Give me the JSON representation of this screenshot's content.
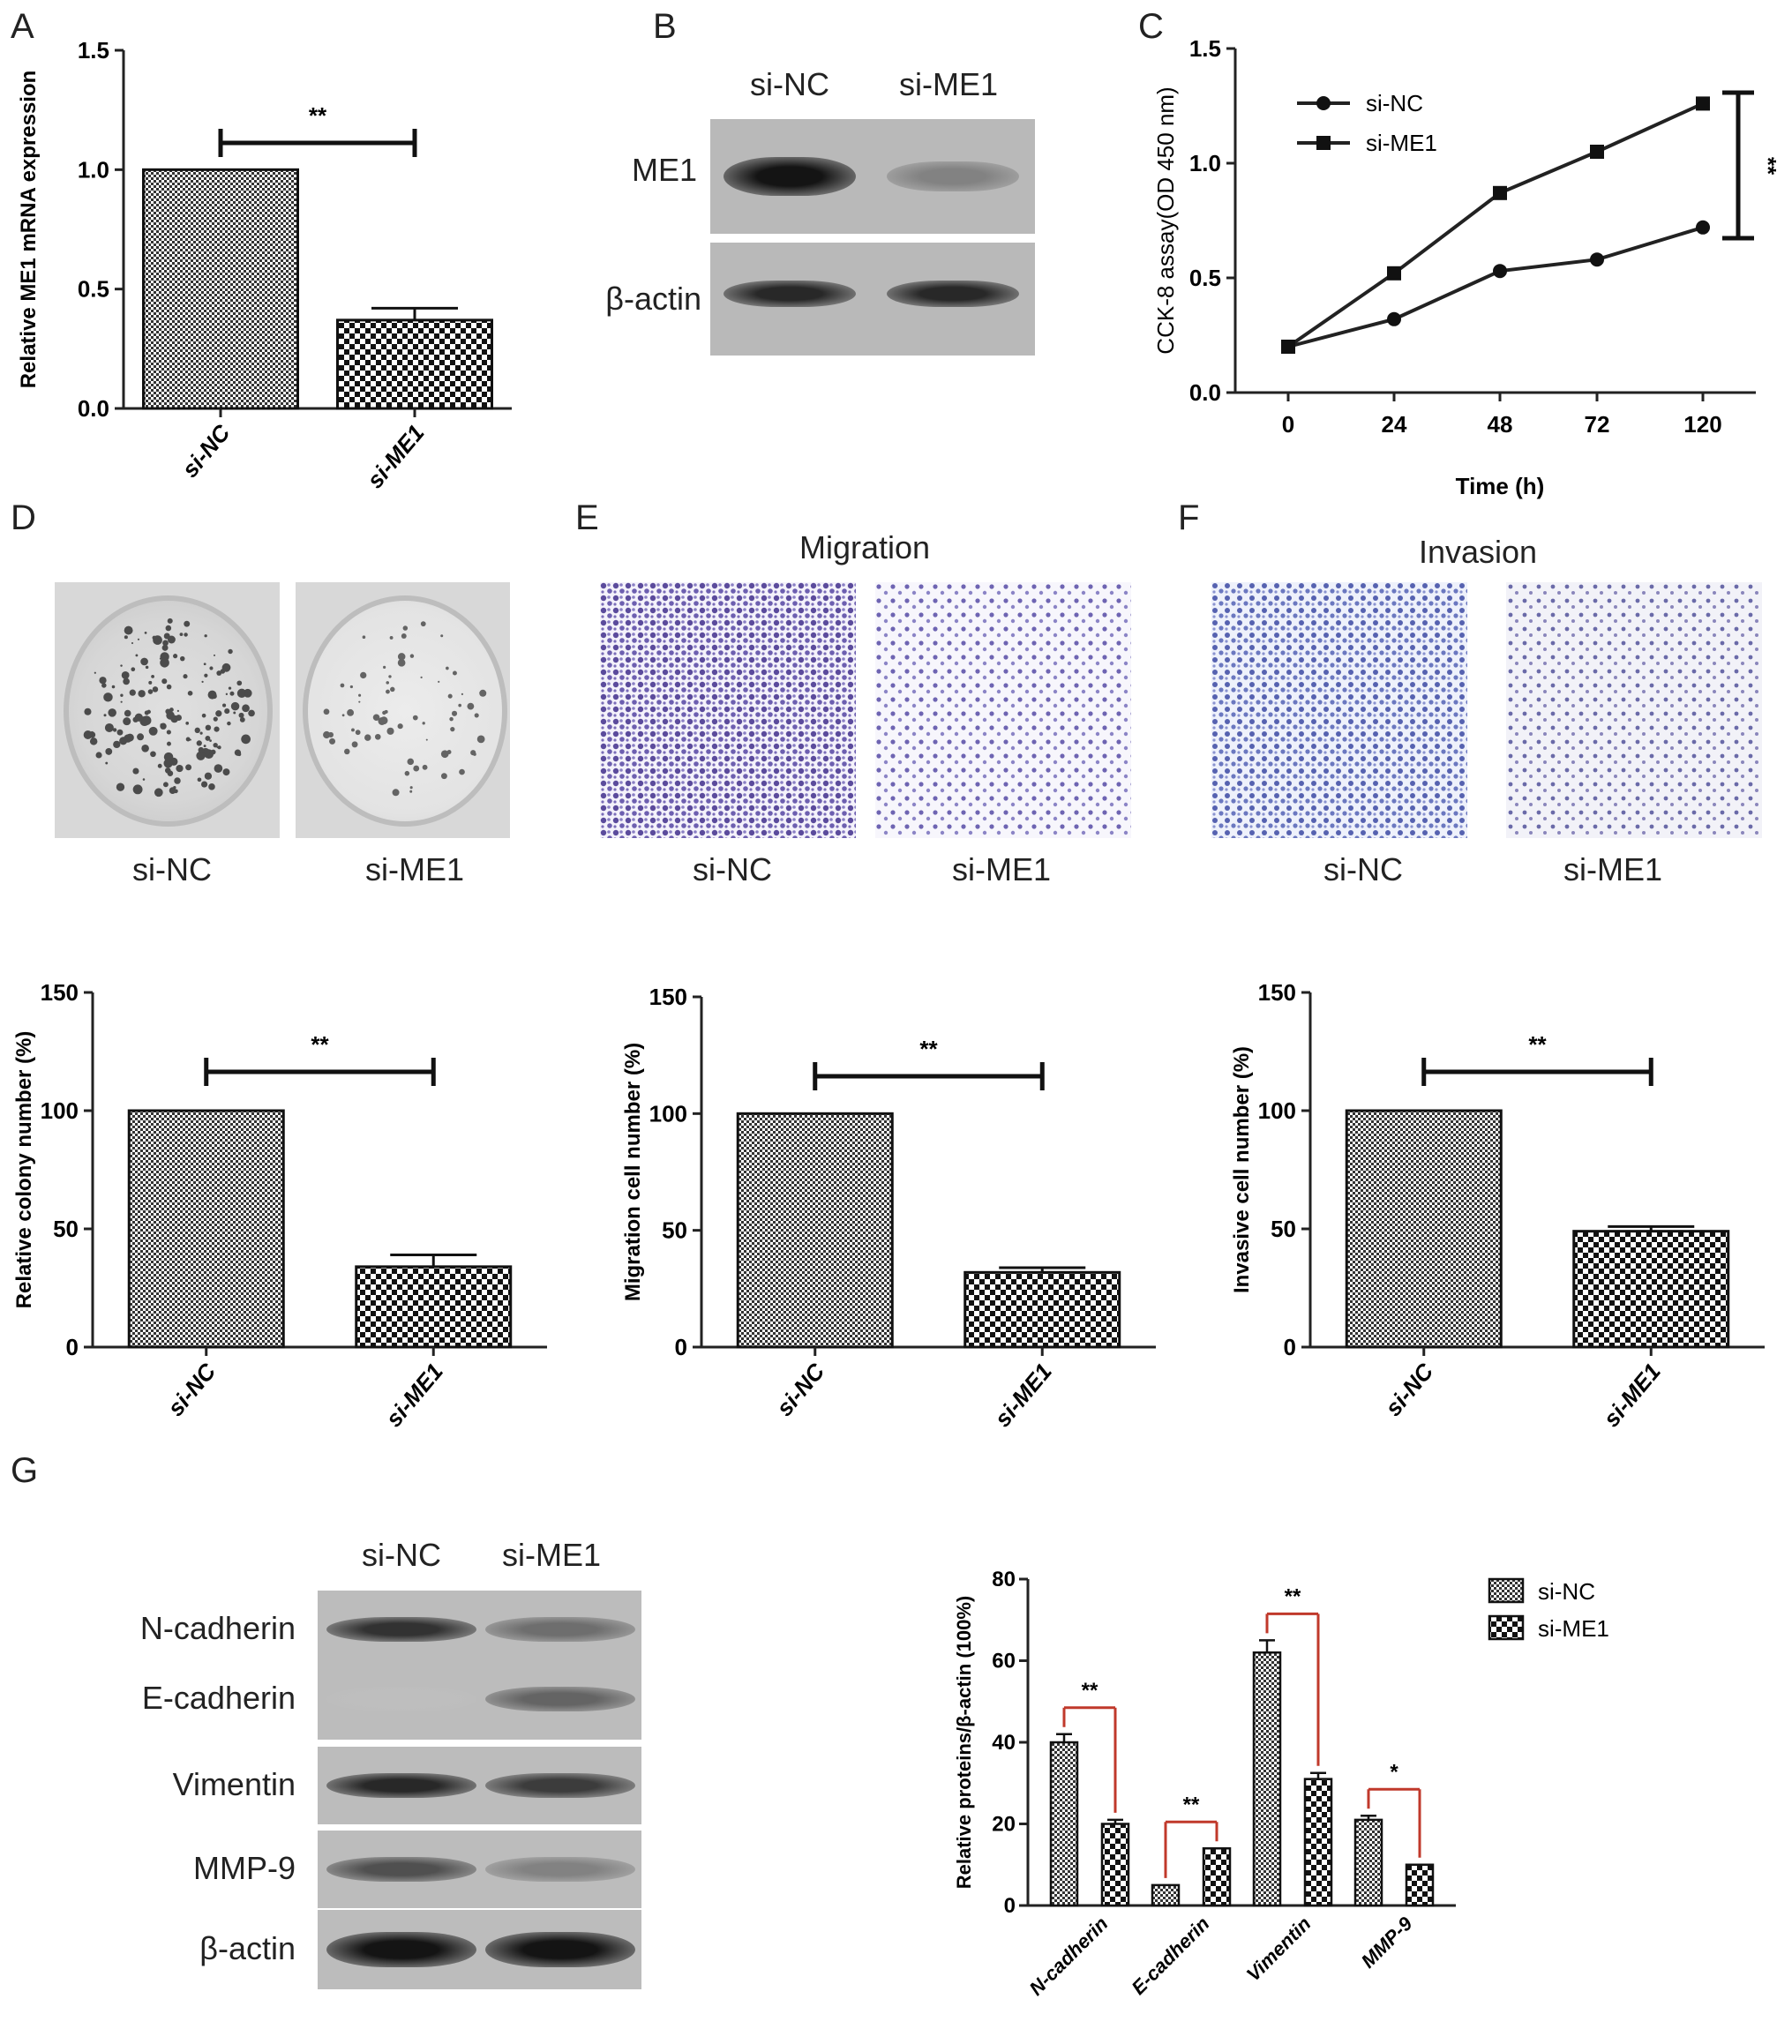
{
  "panels": {
    "A": "A",
    "B": "B",
    "C": "C",
    "D": "D",
    "E": "E",
    "F": "F",
    "G": "G"
  },
  "blot_b": {
    "lanes": [
      "si-NC",
      "si-ME1"
    ],
    "rows": [
      "ME1",
      "β-actin"
    ],
    "intensity": {
      "ME1": [
        1.0,
        0.45
      ],
      "β-actin": [
        0.9,
        0.9
      ]
    }
  },
  "panel_d": {
    "captions": [
      "si-NC",
      "si-ME1"
    ]
  },
  "panel_e": {
    "title": "Migration",
    "captions": [
      "si-NC",
      "si-ME1"
    ]
  },
  "panel_f": {
    "title": "Invasion",
    "captions": [
      "si-NC",
      "si-ME1"
    ]
  },
  "blot_g": {
    "lanes": [
      "si-NC",
      "si-ME1"
    ],
    "rows": [
      "N-cadherin",
      "E-cadherin",
      "Vimentin",
      "MMP-9",
      "β-actin"
    ],
    "intensity": {
      "N-cadherin": [
        0.85,
        0.55
      ],
      "E-cadherin": [
        0.15,
        0.6
      ],
      "Vimentin": [
        0.9,
        0.8
      ],
      "MMP-9": [
        0.7,
        0.45
      ],
      "β-actin": [
        1.0,
        1.0
      ]
    }
  },
  "chart_data": [
    {
      "id": "A",
      "type": "bar",
      "categories": [
        "si-NC",
        "si-ME1"
      ],
      "values": [
        1.0,
        0.37
      ],
      "errors": [
        0,
        0.05
      ],
      "ylabel": "Relative ME1 mRNA expression",
      "ylim": [
        0,
        1.5
      ],
      "yticks": [
        "0.0",
        "0.5",
        "1.0",
        "1.5"
      ],
      "ytick_values": [
        0,
        0.5,
        1.0,
        1.5
      ],
      "significance": "**",
      "grid": false
    },
    {
      "id": "C",
      "type": "line",
      "x": [
        "0",
        "24",
        "48",
        "72",
        "120"
      ],
      "series": [
        {
          "name": "si-NC",
          "marker": "circle",
          "values": [
            0.2,
            0.32,
            0.53,
            0.58,
            0.72
          ]
        },
        {
          "name": "si-ME1",
          "marker": "square",
          "values": [
            0.2,
            0.52,
            0.87,
            1.05,
            1.26
          ]
        }
      ],
      "xlabel": "Time (h)",
      "ylabel": "CCK-8 assay(OD 450 nm)",
      "ylim": [
        0,
        1.5
      ],
      "yticks": [
        "0.0",
        "0.5",
        "1.0",
        "1.5"
      ],
      "ytick_values": [
        0,
        0.5,
        1.0,
        1.5
      ],
      "significance": "**",
      "legend": "top-left",
      "grid": false
    },
    {
      "id": "D",
      "type": "bar",
      "categories": [
        "si-NC",
        "si-ME1"
      ],
      "values": [
        100,
        34
      ],
      "errors": [
        0,
        5
      ],
      "ylabel": "Relative colony number (%)",
      "ylim": [
        0,
        150
      ],
      "yticks": [
        "0",
        "50",
        "100",
        "150"
      ],
      "ytick_values": [
        0,
        50,
        100,
        150
      ],
      "significance": "**",
      "grid": false
    },
    {
      "id": "E",
      "type": "bar",
      "categories": [
        "si-NC",
        "si-ME1"
      ],
      "values": [
        100,
        32
      ],
      "errors": [
        0,
        2
      ],
      "ylabel": "Migration cell number (%)",
      "ylim": [
        0,
        150
      ],
      "yticks": [
        "0",
        "50",
        "100",
        "150"
      ],
      "ytick_values": [
        0,
        50,
        100,
        150
      ],
      "significance": "**",
      "grid": false
    },
    {
      "id": "F",
      "type": "bar",
      "categories": [
        "si-NC",
        "si-ME1"
      ],
      "values": [
        100,
        49
      ],
      "errors": [
        0,
        2
      ],
      "ylabel": "Invasive cell number (%)",
      "ylim": [
        0,
        150
      ],
      "yticks": [
        "0",
        "50",
        "100",
        "150"
      ],
      "ytick_values": [
        0,
        50,
        100,
        150
      ],
      "significance": "**",
      "grid": false
    },
    {
      "id": "G",
      "type": "bar",
      "categories": [
        "N-cadherin",
        "E-cadherin",
        "Vimentin",
        "MMP-9"
      ],
      "series": [
        {
          "name": "si-NC",
          "values": [
            40,
            5,
            62,
            21
          ],
          "errors": [
            2,
            0,
            3,
            1
          ]
        },
        {
          "name": "si-ME1",
          "values": [
            20,
            14,
            31,
            10
          ],
          "errors": [
            1,
            0,
            1.5,
            0
          ]
        }
      ],
      "ylabel": "Relative proteins/β-actin (100%)",
      "ylim": [
        0,
        80
      ],
      "yticks": [
        "0",
        "20",
        "40",
        "60",
        "80"
      ],
      "ytick_values": [
        0,
        20,
        40,
        60,
        80
      ],
      "significance": [
        "**",
        "**",
        "**",
        "*"
      ],
      "legend": "top-right",
      "grid": false
    }
  ]
}
